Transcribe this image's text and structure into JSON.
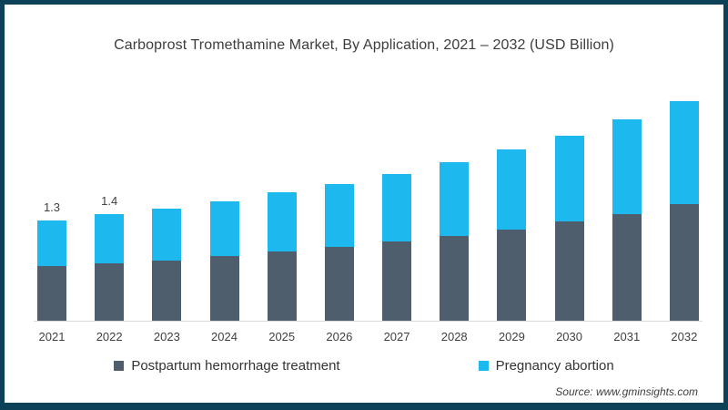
{
  "title": "Carboprost Tromethamine Market, By Application, 2021 – 2032 (USD Billion)",
  "source": "Source: www.gminsights.com",
  "legend": {
    "items": [
      {
        "label": "Postpartum hemorrhage treatment",
        "color": "#4f5e6d"
      },
      {
        "label": "Pregnancy abortion",
        "color": "#1cb8ee"
      }
    ]
  },
  "colors": {
    "frame_border": "#0d4157",
    "axis_line": "#dadada",
    "text": "#404040",
    "postpartum": "#4f5e6d",
    "pregnancy": "#1cb8ee"
  },
  "chart_data": {
    "type": "bar",
    "stacked": true,
    "title": "Carboprost Tromethamine Market, By Application, 2021 – 2032 (USD Billion)",
    "unit": "USD Billion",
    "categories": [
      "2021",
      "2022",
      "2023",
      "2024",
      "2025",
      "2026",
      "2027",
      "2028",
      "2029",
      "2030",
      "2031",
      "2032"
    ],
    "series": [
      {
        "name": "Postpartum hemorrhage treatment",
        "color": "#4f5e6d",
        "values": [
          0.71,
          0.74,
          0.78,
          0.84,
          0.9,
          0.96,
          1.03,
          1.1,
          1.18,
          1.29,
          1.38,
          1.51
        ]
      },
      {
        "name": "Pregnancy abortion",
        "color": "#1cb8ee",
        "values": [
          0.59,
          0.64,
          0.67,
          0.71,
          0.77,
          0.82,
          0.88,
          0.96,
          1.04,
          1.11,
          1.23,
          1.33
        ]
      }
    ],
    "totals": [
      1.3,
      1.38,
      1.45,
      1.55,
      1.67,
      1.78,
      1.91,
      2.06,
      2.22,
      2.4,
      2.61,
      2.84
    ],
    "bar_labels": [
      "1.3",
      "1.4",
      "",
      "",
      "",
      "",
      "",
      "",
      "",
      "",
      "",
      ""
    ],
    "xlabel": "",
    "ylabel": "",
    "ylim": [
      0,
      3
    ],
    "grid": false,
    "legend_position": "bottom"
  }
}
